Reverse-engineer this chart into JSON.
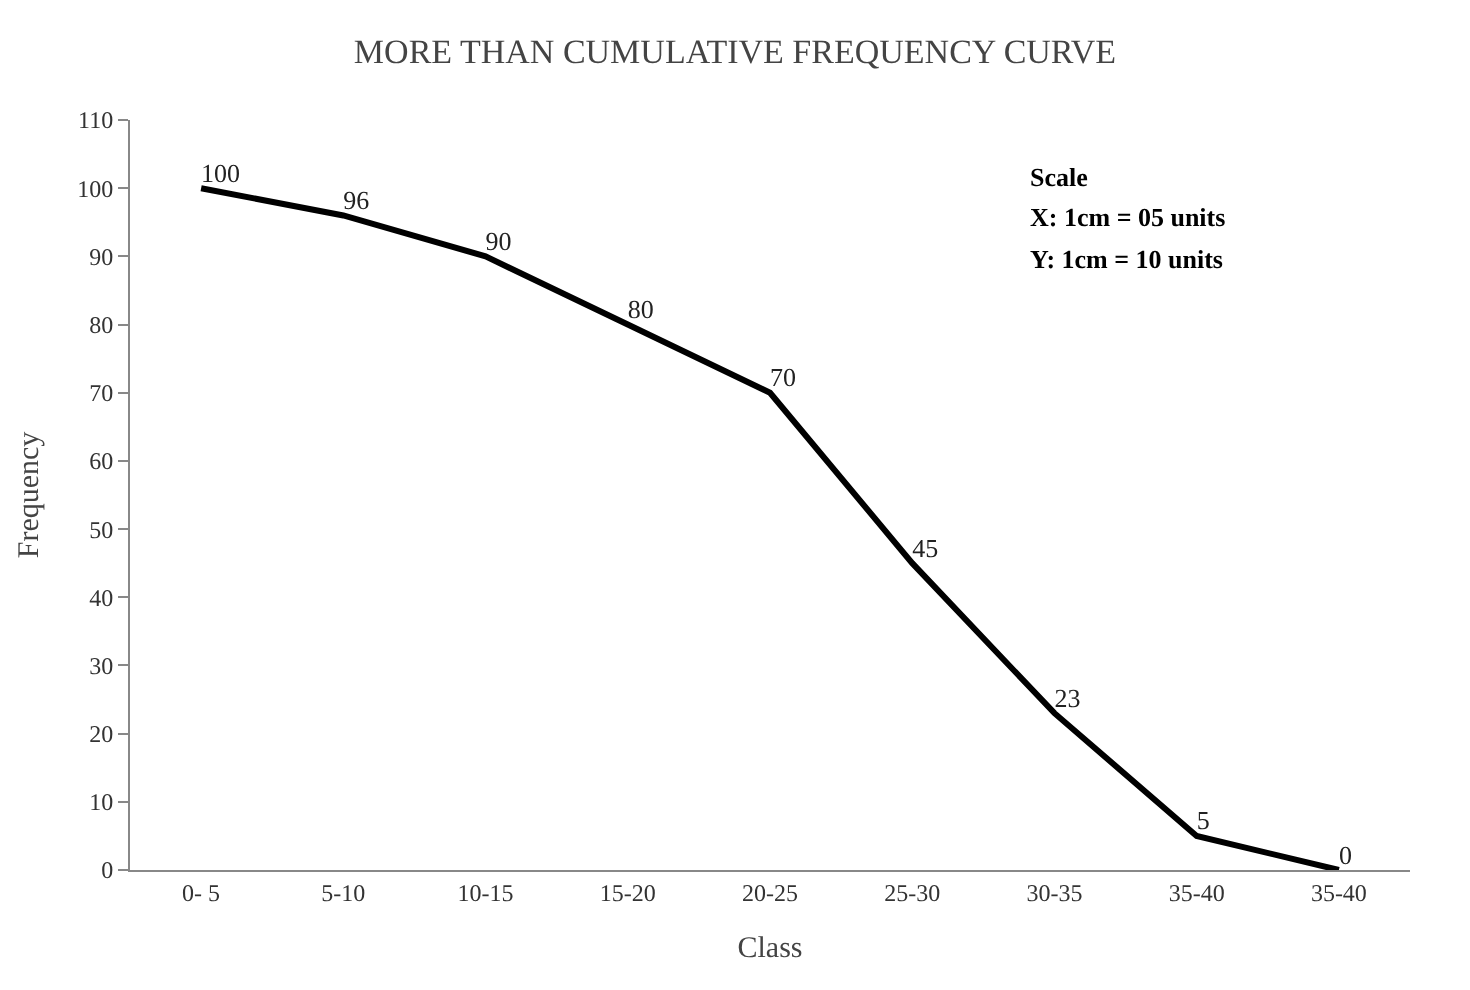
{
  "chart_data": {
    "type": "line",
    "title": "MORE THAN CUMULATIVE FREQUENCY CURVE",
    "xlabel": "Class",
    "ylabel": "Frequency",
    "categories": [
      "0- 5",
      "5-10",
      "10-15",
      "15-20",
      "20-25",
      "25-30",
      "30-35",
      "35-40",
      "35-40"
    ],
    "series": [
      {
        "color": "#000000",
        "values": [
          100,
          96,
          90,
          80,
          70,
          45,
          23,
          5,
          0
        ]
      }
    ],
    "ylim": [
      0,
      110
    ],
    "yticks": [
      0,
      10,
      20,
      30,
      40,
      50,
      60,
      70,
      80,
      90,
      100,
      110
    ],
    "data_labels": true,
    "marker": "none",
    "line_style": "solid",
    "annotations": [
      "Scale",
      "X: 1cm = 05 units",
      "Y: 1cm = 10 units"
    ]
  }
}
